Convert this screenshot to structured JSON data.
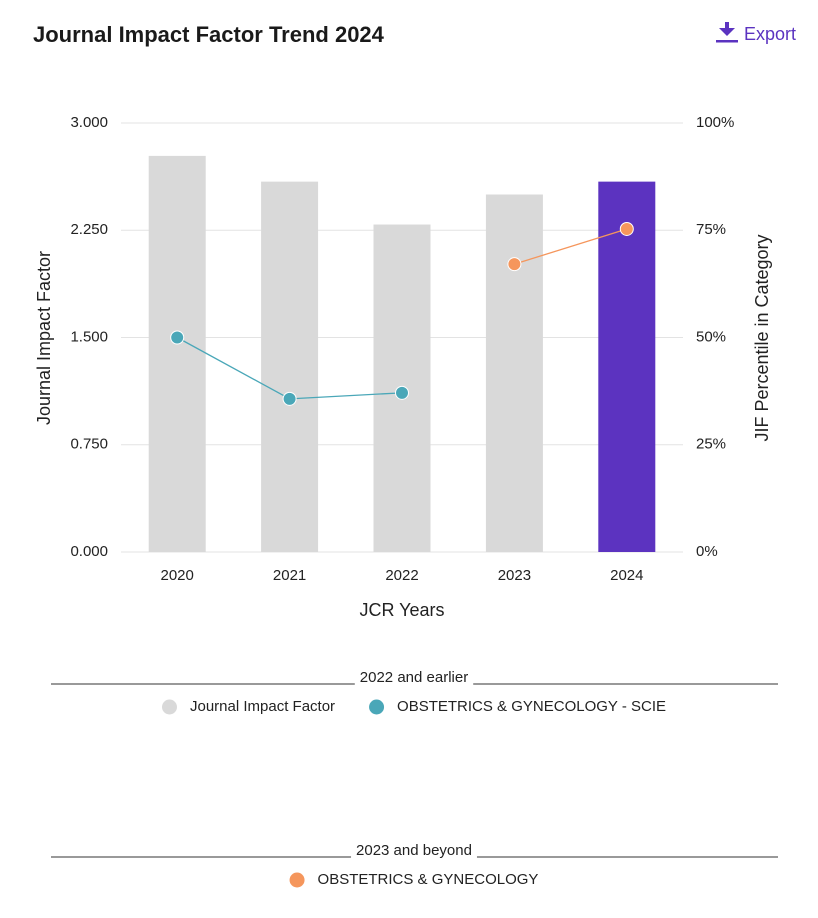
{
  "export": "Export",
  "chart_data": {
    "type": "bar",
    "title": "Journal Impact Factor Trend 2024",
    "x_label": "JCR Years",
    "y_label": "Journal Impact Factor",
    "y2_label": "JIF Percentile in Category",
    "categories": [
      "2020",
      "2021",
      "2022",
      "2023",
      "2024"
    ],
    "ylim": [
      0,
      3
    ],
    "yticks": [
      {
        "value": 0,
        "label": "0.000"
      },
      {
        "value": 0.75,
        "label": "0.750"
      },
      {
        "value": 1.5,
        "label": "1.500"
      },
      {
        "value": 2.25,
        "label": "2.250"
      },
      {
        "value": 3,
        "label": "3.000"
      }
    ],
    "y2lim": [
      0,
      100
    ],
    "y2ticks": [
      {
        "value": 0,
        "label": "0%"
      },
      {
        "value": 25,
        "label": "25%"
      },
      {
        "value": 50,
        "label": "50%"
      },
      {
        "value": 75,
        "label": "75%"
      },
      {
        "value": 100,
        "label": "100%"
      }
    ],
    "grid": true,
    "series": [
      {
        "name": "Journal Impact Factor",
        "type": "bar",
        "color": "#d9d9d9",
        "colors": [
          "#d9d9d9",
          "#d9d9d9",
          "#d9d9d9",
          "#d9d9d9",
          "#5c33c0"
        ],
        "values": [
          2.77,
          2.59,
          2.29,
          2.5,
          2.59
        ]
      },
      {
        "name": "OBSTETRICS & GYNECOLOGY - SCIE",
        "type": "line",
        "axis": "y2",
        "color": "#4aa7b8",
        "values": [
          50,
          35.7,
          37.1,
          null,
          null
        ]
      },
      {
        "name": "OBSTETRICS & GYNECOLOGY",
        "type": "line",
        "axis": "y2",
        "color": "#f5965c",
        "values": [
          null,
          null,
          null,
          67.1,
          75.3
        ]
      }
    ],
    "legend_groups": [
      {
        "title": "2022 and earlier",
        "series": [
          0,
          1
        ]
      },
      {
        "title": "2023 and beyond",
        "series": [
          2
        ]
      }
    ]
  }
}
